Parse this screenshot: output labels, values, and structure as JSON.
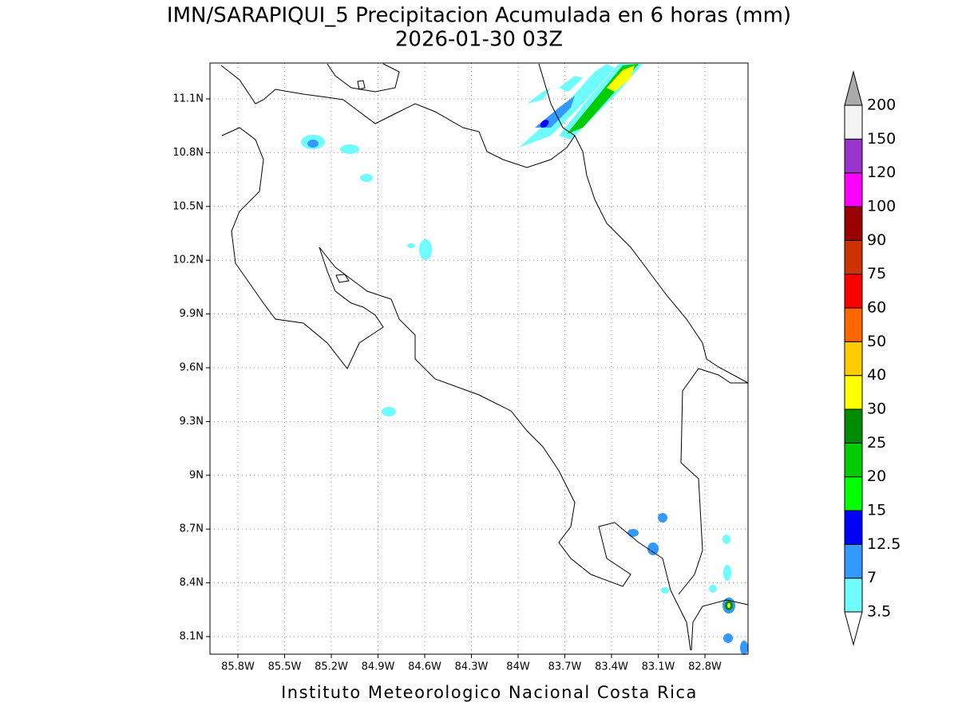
{
  "title": "IMN/SARAPIQUI_5 Precipitacion Acumulada en 6 horas (mm)",
  "subtitle": "2026-01-30 03Z",
  "lat_labels": [
    "11.1N",
    "10.8N",
    "10.5N",
    "10.2N",
    "9.9N",
    "9.6N",
    "9.3N",
    "9N",
    "8.7N",
    "8.4N",
    "8.1N"
  ],
  "lon_labels": [
    "85.8W",
    "85.5W",
    "85.2W",
    "84.9W",
    "84.6W",
    "84.3W",
    "84W",
    "83.7W",
    "83.4W",
    "83.1W",
    "82.8W"
  ],
  "legend": {
    "labels": [
      "3.5",
      "7",
      "12.5",
      "15",
      "20",
      "25",
      "30",
      "40",
      "50",
      "60",
      "75",
      "90",
      "100",
      "120",
      "150",
      "200"
    ],
    "colors": [
      "#ffffff",
      "#6ffcfc",
      "#3399ff",
      "#0000ff",
      "#00ff00",
      "#00cc00",
      "#008c00",
      "#ffff00",
      "#ffcc00",
      "#ff6600",
      "#ff0000",
      "#cc3300",
      "#990000",
      "#ff00ff",
      "#9933cc",
      "#f4f4f4",
      "#aaaaaa"
    ]
  },
  "footer": "Instituto Meteorologico Nacional Costa Rica"
}
